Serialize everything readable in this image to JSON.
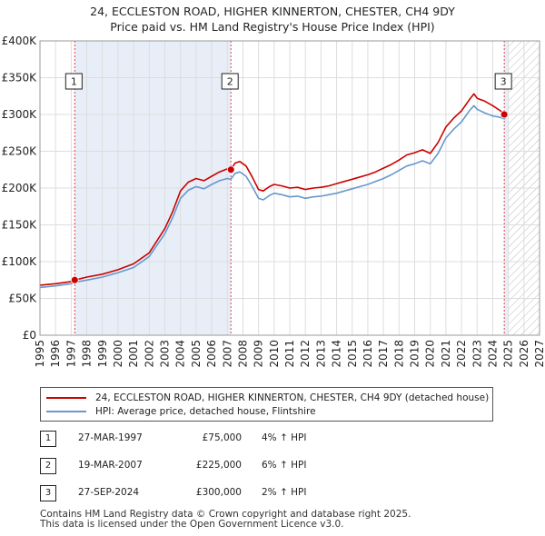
{
  "title": "24, ECCLESTON ROAD, HIGHER KINNERTON, CHESTER, CH4 9DY",
  "subtitle": "Price paid vs. HM Land Registry's House Price Index (HPI)",
  "colors": {
    "price_paid": "#cc0000",
    "hpi": "#6699cc",
    "grid": "#dddddd",
    "shade": "#e8eef7"
  },
  "chart_data": {
    "type": "line",
    "title": "24, ECCLESTON ROAD, HIGHER KINNERTON, CHESTER, CH4 9DY",
    "subtitle": "Price paid vs. HM Land Registry's House Price Index (HPI)",
    "xlim": [
      1995,
      2027
    ],
    "ylim": [
      0,
      400000
    ],
    "x_ticks": [
      1995,
      1996,
      1997,
      1998,
      1999,
      2000,
      2001,
      2002,
      2003,
      2004,
      2005,
      2006,
      2007,
      2008,
      2009,
      2010,
      2011,
      2012,
      2013,
      2014,
      2015,
      2016,
      2017,
      2018,
      2019,
      2020,
      2021,
      2022,
      2023,
      2024,
      2025,
      2026,
      2027
    ],
    "y_ticks": [
      {
        "value": 0,
        "label": "£0"
      },
      {
        "value": 50000,
        "label": "£50K"
      },
      {
        "value": 100000,
        "label": "£100K"
      },
      {
        "value": 150000,
        "label": "£150K"
      },
      {
        "value": 200000,
        "label": "£200K"
      },
      {
        "value": 250000,
        "label": "£250K"
      },
      {
        "value": 300000,
        "label": "£300K"
      },
      {
        "value": 350000,
        "label": "£350K"
      },
      {
        "value": 400000,
        "label": "£400K"
      }
    ],
    "series": [
      {
        "name": "24, ECCLESTON ROAD, HIGHER KINNERTON, CHESTER, CH4 9DY (detached house)",
        "color": "#cc0000",
        "points": [
          [
            1995.0,
            68000
          ],
          [
            1996.0,
            70000
          ],
          [
            1997.0,
            73000
          ],
          [
            1997.23,
            75000
          ],
          [
            1998.0,
            79000
          ],
          [
            1999.0,
            83000
          ],
          [
            2000.0,
            89000
          ],
          [
            2001.0,
            97000
          ],
          [
            2002.0,
            112000
          ],
          [
            2003.0,
            145000
          ],
          [
            2003.5,
            168000
          ],
          [
            2004.0,
            196000
          ],
          [
            2004.5,
            208000
          ],
          [
            2005.0,
            213000
          ],
          [
            2005.5,
            210000
          ],
          [
            2006.0,
            216000
          ],
          [
            2006.5,
            222000
          ],
          [
            2007.0,
            226000
          ],
          [
            2007.23,
            225000
          ],
          [
            2007.5,
            234000
          ],
          [
            2007.8,
            236000
          ],
          [
            2008.2,
            230000
          ],
          [
            2008.6,
            215000
          ],
          [
            2009.0,
            198000
          ],
          [
            2009.3,
            196000
          ],
          [
            2009.7,
            202000
          ],
          [
            2010.0,
            205000
          ],
          [
            2010.5,
            203000
          ],
          [
            2011.0,
            200000
          ],
          [
            2011.5,
            201000
          ],
          [
            2012.0,
            198000
          ],
          [
            2012.5,
            200000
          ],
          [
            2013.0,
            201000
          ],
          [
            2013.5,
            203000
          ],
          [
            2014.0,
            206000
          ],
          [
            2014.5,
            209000
          ],
          [
            2015.0,
            212000
          ],
          [
            2015.5,
            215000
          ],
          [
            2016.0,
            218000
          ],
          [
            2016.5,
            222000
          ],
          [
            2017.0,
            227000
          ],
          [
            2017.5,
            232000
          ],
          [
            2018.0,
            238000
          ],
          [
            2018.5,
            245000
          ],
          [
            2019.0,
            248000
          ],
          [
            2019.5,
            252000
          ],
          [
            2020.0,
            247000
          ],
          [
            2020.5,
            262000
          ],
          [
            2021.0,
            283000
          ],
          [
            2021.5,
            295000
          ],
          [
            2022.0,
            305000
          ],
          [
            2022.5,
            320000
          ],
          [
            2022.8,
            328000
          ],
          [
            2023.0,
            322000
          ],
          [
            2023.5,
            318000
          ],
          [
            2024.0,
            312000
          ],
          [
            2024.5,
            305000
          ],
          [
            2024.74,
            300000
          ],
          [
            2024.85,
            302000
          ]
        ]
      },
      {
        "name": "HPI: Average price, detached house, Flintshire",
        "color": "#6699cc",
        "points": [
          [
            1995.0,
            65000
          ],
          [
            1996.0,
            67000
          ],
          [
            1997.0,
            70000
          ],
          [
            1997.23,
            72000
          ],
          [
            1998.0,
            75000
          ],
          [
            1999.0,
            79000
          ],
          [
            2000.0,
            85000
          ],
          [
            2001.0,
            92000
          ],
          [
            2002.0,
            107000
          ],
          [
            2003.0,
            138000
          ],
          [
            2003.5,
            160000
          ],
          [
            2004.0,
            186000
          ],
          [
            2004.5,
            197000
          ],
          [
            2005.0,
            202000
          ],
          [
            2005.5,
            199000
          ],
          [
            2006.0,
            205000
          ],
          [
            2006.5,
            210000
          ],
          [
            2007.0,
            213000
          ],
          [
            2007.23,
            212000
          ],
          [
            2007.5,
            220000
          ],
          [
            2007.8,
            222000
          ],
          [
            2008.2,
            216000
          ],
          [
            2008.6,
            202000
          ],
          [
            2009.0,
            186000
          ],
          [
            2009.3,
            184000
          ],
          [
            2009.7,
            190000
          ],
          [
            2010.0,
            193000
          ],
          [
            2010.5,
            191000
          ],
          [
            2011.0,
            188000
          ],
          [
            2011.5,
            189000
          ],
          [
            2012.0,
            186000
          ],
          [
            2012.5,
            188000
          ],
          [
            2013.0,
            189000
          ],
          [
            2013.5,
            191000
          ],
          [
            2014.0,
            193000
          ],
          [
            2014.5,
            196000
          ],
          [
            2015.0,
            199000
          ],
          [
            2015.5,
            202000
          ],
          [
            2016.0,
            205000
          ],
          [
            2016.5,
            209000
          ],
          [
            2017.0,
            213000
          ],
          [
            2017.5,
            218000
          ],
          [
            2018.0,
            224000
          ],
          [
            2018.5,
            230000
          ],
          [
            2019.0,
            233000
          ],
          [
            2019.5,
            237000
          ],
          [
            2020.0,
            233000
          ],
          [
            2020.5,
            247000
          ],
          [
            2021.0,
            268000
          ],
          [
            2021.5,
            280000
          ],
          [
            2022.0,
            290000
          ],
          [
            2022.5,
            305000
          ],
          [
            2022.8,
            312000
          ],
          [
            2023.0,
            307000
          ],
          [
            2023.5,
            302000
          ],
          [
            2024.0,
            298000
          ],
          [
            2024.5,
            296000
          ],
          [
            2024.74,
            294000
          ],
          [
            2024.85,
            296000
          ]
        ]
      }
    ],
    "shaded_ranges": [
      [
        1997.23,
        2007.23
      ],
      [
        2024.74,
        2025.0
      ]
    ],
    "hatched_range": [
      2025.0,
      2027.0
    ],
    "markers": [
      {
        "label": "1",
        "x": 1997.23,
        "y": 75000
      },
      {
        "label": "2",
        "x": 2007.23,
        "y": 225000
      },
      {
        "label": "3",
        "x": 2024.74,
        "y": 300000
      }
    ],
    "legend": [
      {
        "label": "24, ECCLESTON ROAD, HIGHER KINNERTON, CHESTER, CH4 9DY (detached house)",
        "color": "#cc0000"
      },
      {
        "label": "HPI: Average price, detached house, Flintshire",
        "color": "#6699cc"
      }
    ]
  },
  "sales": [
    {
      "label": "1",
      "date": "27-MAR-1997",
      "price": "£75,000",
      "hpi": "4% ↑ HPI"
    },
    {
      "label": "2",
      "date": "19-MAR-2007",
      "price": "£225,000",
      "hpi": "6% ↑ HPI"
    },
    {
      "label": "3",
      "date": "27-SEP-2024",
      "price": "£300,000",
      "hpi": "2% ↑ HPI"
    }
  ],
  "footer": {
    "line1": "Contains HM Land Registry data © Crown copyright and database right 2025.",
    "line2": "This data is licensed under the Open Government Licence v3.0."
  }
}
